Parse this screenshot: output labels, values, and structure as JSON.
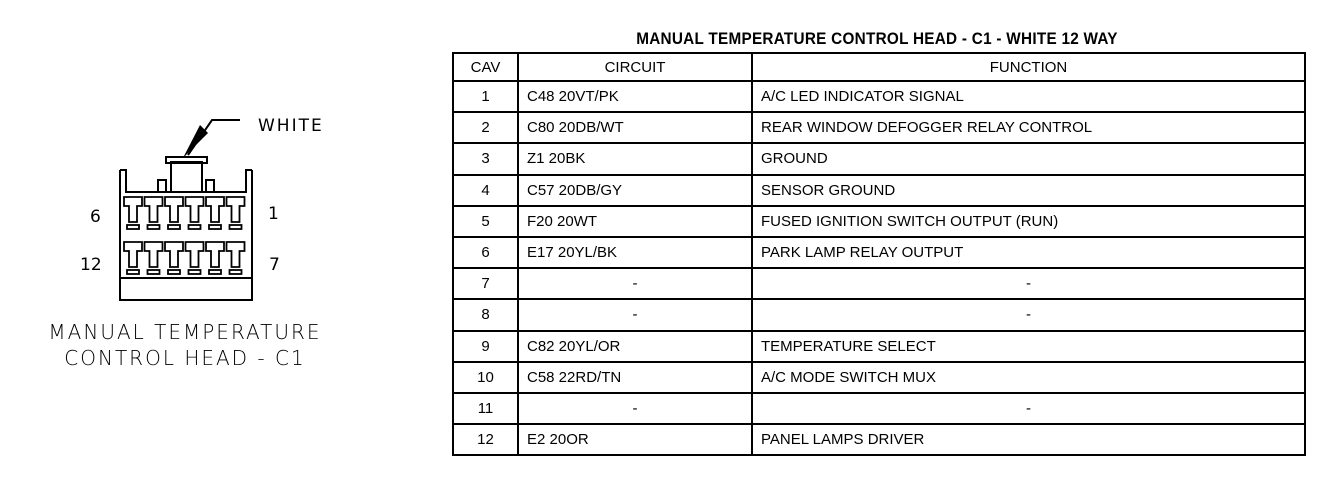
{
  "connector": {
    "color_label": "WHITE",
    "pin_labels": {
      "top_left": "6",
      "top_right": "1",
      "bottom_left": "12",
      "bottom_right": "7"
    },
    "caption_line1": "MANUAL TEMPERATURE",
    "caption_line2": "CONTROL HEAD - C1"
  },
  "table": {
    "title": "MANUAL TEMPERATURE CONTROL HEAD - C1 - WHITE 12 WAY",
    "headers": [
      "CAV",
      "CIRCUIT",
      "FUNCTION"
    ],
    "rows": [
      {
        "cav": "1",
        "circuit": "C48 20VT/PK",
        "function": "A/C LED INDICATOR SIGNAL"
      },
      {
        "cav": "2",
        "circuit": "C80 20DB/WT",
        "function": "REAR WINDOW DEFOGGER RELAY CONTROL"
      },
      {
        "cav": "3",
        "circuit": "Z1 20BK",
        "function": "GROUND"
      },
      {
        "cav": "4",
        "circuit": "C57 20DB/GY",
        "function": "SENSOR GROUND"
      },
      {
        "cav": "5",
        "circuit": "F20 20WT",
        "function": "FUSED IGNITION SWITCH OUTPUT (RUN)"
      },
      {
        "cav": "6",
        "circuit": "E17 20YL/BK",
        "function": "PARK LAMP RELAY OUTPUT"
      },
      {
        "cav": "7",
        "circuit": "-",
        "function": "-"
      },
      {
        "cav": "8",
        "circuit": "-",
        "function": "-"
      },
      {
        "cav": "9",
        "circuit": "C82 20YL/OR",
        "function": "TEMPERATURE SELECT"
      },
      {
        "cav": "10",
        "circuit": "C58 22RD/TN",
        "function": "A/C MODE SWITCH MUX"
      },
      {
        "cav": "11",
        "circuit": "-",
        "function": "-"
      },
      {
        "cav": "12",
        "circuit": "E2 20OR",
        "function": "PANEL LAMPS DRIVER"
      }
    ]
  }
}
